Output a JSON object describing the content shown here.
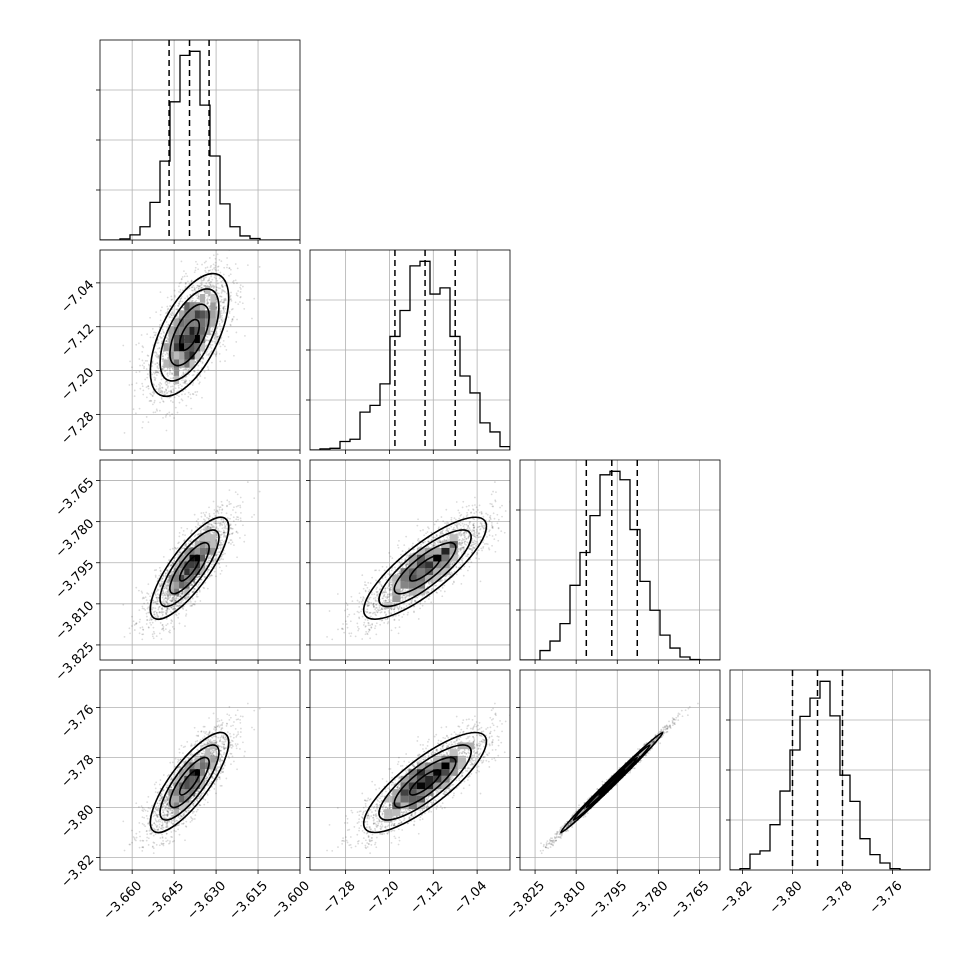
{
  "chart_data": {
    "type": "scatter",
    "subtype": "corner-plot",
    "n_params": 4,
    "grid": true,
    "quantiles": [
      0.16,
      0.5,
      0.84
    ],
    "parameters": [
      {
        "ticks": [
          -3.66,
          -3.645,
          -3.63,
          -3.615,
          -3.6
        ],
        "tick_labels": [
          "−3.660",
          "−3.645",
          "−3.630",
          "−3.615",
          "−3.600"
        ],
        "range": [
          -3.6715,
          -3.6
        ],
        "median": -3.6395,
        "sigma": 0.007,
        "quantile_values": [
          -3.6468,
          -3.6395,
          -3.6325
        ]
      },
      {
        "ticks": [
          -7.28,
          -7.2,
          -7.12,
          -7.04
        ],
        "tick_labels": [
          "−7.28",
          "−7.20",
          "−7.12",
          "−7.04"
        ],
        "range": [
          -7.345,
          -6.98
        ],
        "median": -7.135,
        "sigma": 0.056,
        "quantile_values": [
          -7.19,
          -7.135,
          -7.08
        ]
      },
      {
        "ticks": [
          -3.825,
          -3.81,
          -3.795,
          -3.78,
          -3.765
        ],
        "tick_labels": [
          "−3.825",
          "−3.810",
          "−3.795",
          "−3.780",
          "−3.765"
        ],
        "range": [
          -3.8305,
          -3.7575
        ],
        "median": -3.797,
        "sigma": 0.0093,
        "quantile_values": [
          -3.8063,
          -3.797,
          -3.7877
        ]
      },
      {
        "ticks": [
          -3.82,
          -3.8,
          -3.78,
          -3.76
        ],
        "tick_labels": [
          "−3.82",
          "−3.80",
          "−3.78",
          "−3.76"
        ],
        "range": [
          -3.825,
          -3.745
        ],
        "median": -3.79,
        "sigma": 0.01,
        "quantile_values": [
          -3.8,
          -3.79,
          -3.78
        ]
      }
    ],
    "correlations": [
      [
        1,
        0.6,
        0.8,
        0.8
      ],
      [
        0.6,
        1,
        0.82,
        0.82
      ],
      [
        0.8,
        0.82,
        1,
        0.995
      ],
      [
        0.8,
        0.82,
        0.995,
        1
      ]
    ],
    "hist_bins": 20,
    "contour_levels": [
      0.5,
      1.0,
      1.5,
      2.0
    ],
    "colors": {
      "ink": "#000000",
      "grid": "#b0b0b0",
      "background": "#ffffff"
    }
  }
}
